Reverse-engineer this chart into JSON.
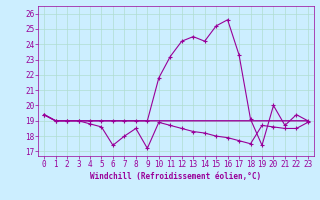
{
  "xlabel": "Windchill (Refroidissement éolien,°C)",
  "background_color": "#cceeff",
  "grid_color": "#b0ddd0",
  "line_color": "#990099",
  "xlim": [
    -0.5,
    23.5
  ],
  "ylim": [
    16.7,
    26.5
  ],
  "yticks": [
    17,
    18,
    19,
    20,
    21,
    22,
    23,
    24,
    25,
    26
  ],
  "xticks": [
    0,
    1,
    2,
    3,
    4,
    5,
    6,
    7,
    8,
    9,
    10,
    11,
    12,
    13,
    14,
    15,
    16,
    17,
    18,
    19,
    20,
    21,
    22,
    23
  ],
  "series1_x": [
    0,
    1,
    2,
    3,
    4,
    5,
    6,
    7,
    8,
    9,
    10,
    11,
    12,
    13,
    14,
    15,
    16,
    17,
    18,
    19,
    20,
    21,
    22,
    23
  ],
  "series1_y": [
    19.4,
    19.0,
    19.0,
    19.0,
    18.8,
    18.6,
    17.4,
    18.0,
    18.5,
    17.2,
    18.9,
    18.7,
    18.5,
    18.3,
    18.2,
    18.0,
    17.9,
    17.7,
    17.5,
    18.7,
    18.6,
    18.5,
    18.5,
    18.9
  ],
  "series2_x": [
    0,
    1,
    2,
    3,
    4,
    5,
    6,
    7,
    8,
    9,
    10,
    11,
    12,
    13,
    14,
    15,
    16,
    17,
    18,
    19,
    20,
    21,
    22,
    23
  ],
  "series2_y": [
    19.4,
    19.0,
    19.0,
    19.0,
    19.0,
    19.0,
    19.0,
    19.0,
    19.0,
    19.0,
    19.0,
    19.0,
    19.0,
    19.0,
    19.0,
    19.0,
    19.0,
    19.0,
    19.0,
    19.0,
    19.0,
    19.0,
    19.0,
    19.0
  ],
  "series3_x": [
    0,
    1,
    2,
    3,
    4,
    5,
    6,
    7,
    8,
    9,
    10,
    11,
    12,
    13,
    14,
    15,
    16,
    17,
    18,
    19,
    20,
    21,
    22,
    23
  ],
  "series3_y": [
    19.4,
    19.0,
    19.0,
    19.0,
    19.0,
    19.0,
    19.0,
    19.0,
    19.0,
    19.0,
    21.8,
    23.2,
    24.2,
    24.5,
    24.2,
    25.2,
    25.6,
    23.3,
    19.1,
    17.4,
    20.0,
    18.7,
    19.4,
    19.0
  ],
  "xlabel_fontsize": 5.5,
  "tick_fontsize": 5.5
}
